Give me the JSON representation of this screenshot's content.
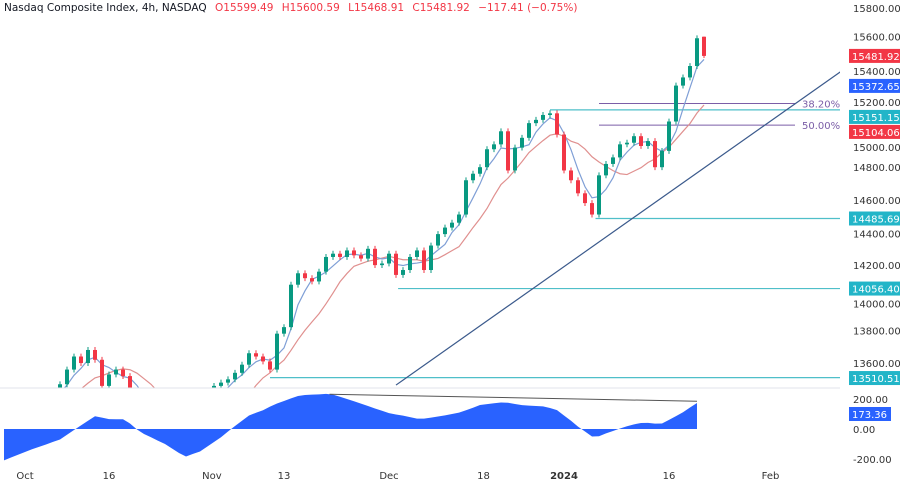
{
  "header": {
    "symbol": "Nasdaq Composite Index, 4h, NASDAQ",
    "open": "O15599.49",
    "high": "H15600.59",
    "low": "L15468.91",
    "close": "C15481.92",
    "change": "−117.41 (−0.75%)"
  },
  "colors": {
    "up": "#089981",
    "down": "#f23645",
    "fast_ma": "#7f9fd6",
    "slow_ma": "#e0908f",
    "level": "#4fbfc9",
    "fib": "#7b5ea7",
    "trendline": "#3b5a8c",
    "oscillator": "#2962ff"
  },
  "chart_data": [
    {
      "type": "candlestick",
      "ylim": [
        13500,
        15830
      ],
      "yticks": [
        "15800.00",
        "15600.00",
        "15400.00",
        "15200.00",
        "15000.00",
        "14800.00",
        "14600.00",
        "14400.00",
        "14200.00",
        "14000.00",
        "13800.00",
        "13600.00"
      ],
      "ytick_values": [
        15800,
        15600,
        15400,
        15200,
        15000,
        14800,
        14600,
        14400,
        14200,
        14000,
        13800,
        13600
      ],
      "xticks": [
        {
          "label": "Oct",
          "bar": 3,
          "bold": false
        },
        {
          "label": "16",
          "bar": 15,
          "bold": false
        },
        {
          "label": "Nov",
          "bar": 29.7,
          "bold": false
        },
        {
          "label": "13",
          "bar": 40,
          "bold": false
        },
        {
          "label": "Dec",
          "bar": 55,
          "bold": false
        },
        {
          "label": "18",
          "bar": 68.5,
          "bold": false
        },
        {
          "label": "2024",
          "bar": 80,
          "bold": true
        },
        {
          "label": "16",
          "bar": 95,
          "bold": false
        },
        {
          "label": "Feb",
          "bar": 109.5,
          "bold": false
        }
      ],
      "close": [
        13380,
        13350,
        13320,
        13300,
        13330,
        13360,
        13400,
        13430,
        13470,
        13560,
        13640,
        13600,
        13680,
        13620,
        13460,
        13530,
        13560,
        13520,
        13420,
        13350,
        13300,
        13260,
        13220,
        13180,
        13140,
        13110,
        13090,
        13150,
        13250,
        13360,
        13460,
        13480,
        13500,
        13540,
        13590,
        13660,
        13640,
        13610,
        13560,
        13780,
        13820,
        14080,
        14150,
        14120,
        14100,
        14160,
        14250,
        14270,
        14250,
        14290,
        14260,
        14240,
        14300,
        14200,
        14210,
        14270,
        14140,
        14170,
        14250,
        14290,
        14170,
        14320,
        14390,
        14430,
        14460,
        14510,
        14720,
        14760,
        14800,
        14910,
        14940,
        15020,
        14780,
        14920,
        14980,
        15070,
        15090,
        15120,
        15130,
        15000,
        14780,
        14720,
        14640,
        14580,
        14510,
        14750,
        14820,
        14860,
        14940,
        14950,
        14990,
        14930,
        14960,
        14800,
        14900,
        15080,
        15300,
        15350,
        15420,
        15590,
        15481.92
      ],
      "last_bar": {
        "open": 15599.49,
        "high": 15600.59,
        "low": 15468.91,
        "close": 15481.92
      },
      "price_labels": [
        {
          "value": 15481.92,
          "text": "15481.92",
          "color": "#f23645"
        },
        {
          "value": 15372.65,
          "text": "15372.65",
          "color": "#2962ff"
        },
        {
          "value": 15151.15,
          "text": "15151.15",
          "color": "#22b5c8"
        },
        {
          "value": 15104.06,
          "text": "15104.06",
          "color": "#f23645"
        },
        {
          "value": 14485.69,
          "text": "14485.69",
          "color": "#22b5c8"
        },
        {
          "value": 14056.4,
          "text": "14056.40",
          "color": "#22b5c8"
        },
        {
          "value": 13510.51,
          "text": "13510.51",
          "color": "#22b5c8"
        }
      ],
      "levels": [
        {
          "value": 15151.15,
          "from_bar": 78
        },
        {
          "value": 14485.69,
          "from_bar": 84.5
        },
        {
          "value": 14056.4,
          "from_bar": 56.3
        },
        {
          "value": 13510.51,
          "from_bar": 38
        }
      ],
      "fib_levels": [
        {
          "label": "38.20%",
          "value": 15190,
          "from_bar": 85
        },
        {
          "label": "50.00%",
          "value": 15058,
          "from_bar": 85
        }
      ],
      "trendline": {
        "from": {
          "bar": 56,
          "value": 13465
        },
        "to": {
          "bar": 120,
          "value": 15400
        }
      }
    },
    {
      "type": "area",
      "ylim": [
        -270,
        280
      ],
      "yticks": [
        "200.00",
        "0.00",
        "-200.00"
      ],
      "ytick_values": [
        200,
        0,
        -200
      ],
      "last_value_label": "173.36",
      "values": [
        -209,
        -190,
        -172,
        -153,
        -135,
        -119,
        -103,
        -86,
        -70,
        -38,
        -7,
        24,
        55,
        85,
        76,
        66,
        65,
        65,
        37,
        -3,
        -33,
        -55,
        -78,
        -100,
        -130,
        -160,
        -183,
        -166,
        -150,
        -118,
        -87,
        -55,
        -17,
        20,
        55,
        90,
        108,
        125,
        149,
        170,
        187,
        204,
        220,
        227,
        229,
        231,
        234,
        229,
        215,
        200,
        185,
        169,
        153,
        137,
        122,
        106,
        97,
        89,
        79,
        69,
        69,
        76,
        83,
        91,
        100,
        109,
        125,
        142,
        160,
        166,
        172,
        177,
        175,
        167,
        159,
        156,
        153,
        151,
        140,
        126,
        90,
        55,
        16,
        -17,
        -50,
        -48,
        -29,
        -13,
        3,
        18,
        31,
        40,
        41,
        36,
        37,
        61,
        86,
        112,
        143,
        173.36
      ],
      "divergence_line": {
        "from": {
          "bar": 46.5,
          "value": 232
        },
        "to": {
          "bar": 99,
          "value": 185
        }
      }
    }
  ]
}
